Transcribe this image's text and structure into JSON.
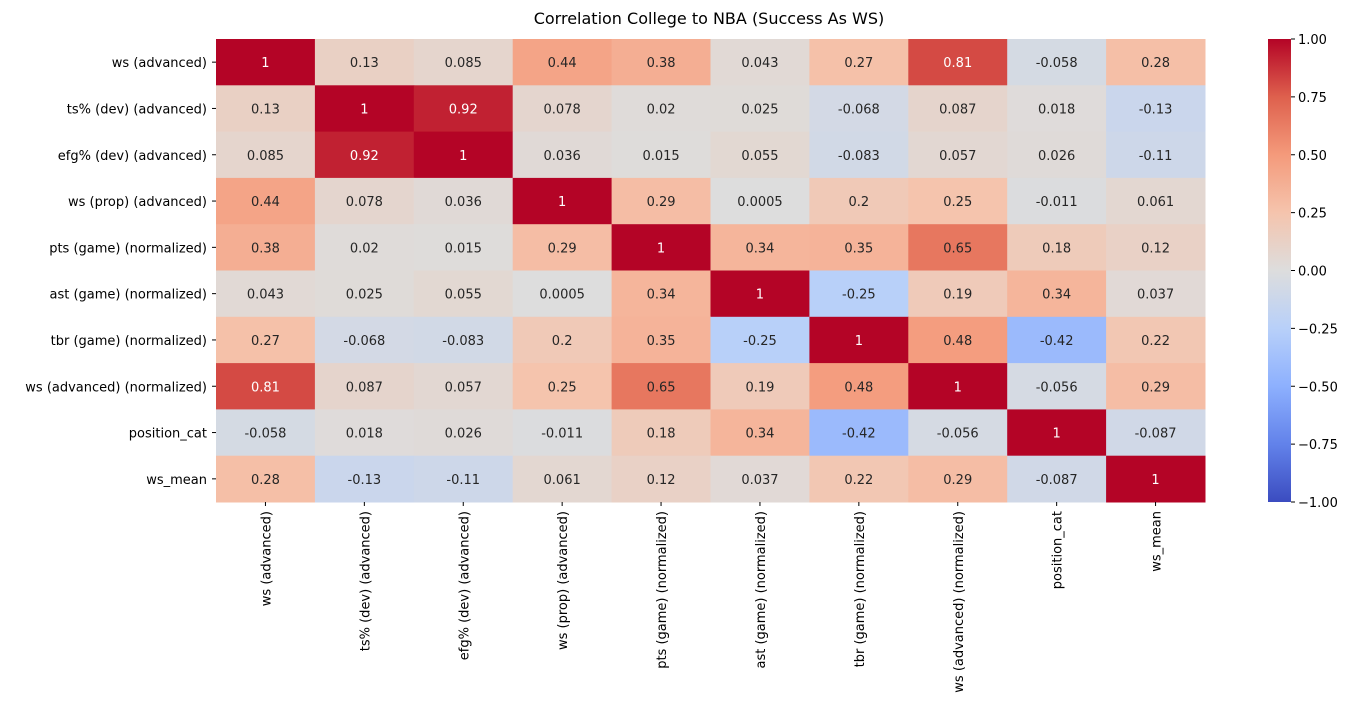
{
  "chart_data": {
    "type": "heatmap",
    "title": "Correlation College to NBA (Success As WS)",
    "xlabel": "",
    "ylabel": "",
    "row_labels": [
      "ws (advanced)",
      "ts% (dev) (advanced)",
      "efg% (dev) (advanced)",
      "ws (prop) (advanced)",
      "pts (game) (normalized)",
      "ast (game) (normalized)",
      "tbr (game) (normalized)",
      "ws (advanced) (normalized)",
      "position_cat",
      "ws_mean"
    ],
    "col_labels": [
      "ws (advanced)",
      "ts% (dev) (advanced)",
      "efg% (dev) (advanced)",
      "ws (prop) (advanced)",
      "pts (game) (normalized)",
      "ast (game) (normalized)",
      "tbr (game) (normalized)",
      "ws (advanced) (normalized)",
      "position_cat",
      "ws_mean"
    ],
    "values": [
      [
        1,
        0.13,
        0.085,
        0.44,
        0.38,
        0.043,
        0.27,
        0.81,
        -0.058,
        0.28
      ],
      [
        0.13,
        1,
        0.92,
        0.078,
        0.02,
        0.025,
        -0.068,
        0.087,
        0.018,
        -0.13
      ],
      [
        0.085,
        0.92,
        1,
        0.036,
        0.015,
        0.055,
        -0.083,
        0.057,
        0.026,
        -0.11
      ],
      [
        0.44,
        0.078,
        0.036,
        1,
        0.29,
        0.0005,
        0.2,
        0.25,
        -0.011,
        0.061
      ],
      [
        0.38,
        0.02,
        0.015,
        0.29,
        1,
        0.34,
        0.35,
        0.65,
        0.18,
        0.12
      ],
      [
        0.043,
        0.025,
        0.055,
        0.0005,
        0.34,
        1,
        -0.25,
        0.19,
        0.34,
        0.037
      ],
      [
        0.27,
        -0.068,
        -0.083,
        0.2,
        0.35,
        -0.25,
        1,
        0.48,
        -0.42,
        0.22
      ],
      [
        0.81,
        0.087,
        0.057,
        0.25,
        0.65,
        0.19,
        0.48,
        1,
        -0.056,
        0.29
      ],
      [
        -0.058,
        0.018,
        0.026,
        -0.011,
        0.18,
        0.34,
        -0.42,
        -0.056,
        1,
        -0.087
      ],
      [
        0.28,
        -0.13,
        -0.11,
        0.061,
        0.12,
        0.037,
        0.22,
        0.29,
        -0.087,
        1
      ]
    ],
    "cell_text": [
      [
        "1",
        "0.13",
        "0.085",
        "0.44",
        "0.38",
        "0.043",
        "0.27",
        "0.81",
        "-0.058",
        "0.28"
      ],
      [
        "0.13",
        "1",
        "0.92",
        "0.078",
        "0.02",
        "0.025",
        "-0.068",
        "0.087",
        "0.018",
        "-0.13"
      ],
      [
        "0.085",
        "0.92",
        "1",
        "0.036",
        "0.015",
        "0.055",
        "-0.083",
        "0.057",
        "0.026",
        "-0.11"
      ],
      [
        "0.44",
        "0.078",
        "0.036",
        "1",
        "0.29",
        "0.0005",
        "0.2",
        "0.25",
        "-0.011",
        "0.061"
      ],
      [
        "0.38",
        "0.02",
        "0.015",
        "0.29",
        "1",
        "0.34",
        "0.35",
        "0.65",
        "0.18",
        "0.12"
      ],
      [
        "0.043",
        "0.025",
        "0.055",
        "0.0005",
        "0.34",
        "1",
        "-0.25",
        "0.19",
        "0.34",
        "0.037"
      ],
      [
        "0.27",
        "-0.068",
        "-0.083",
        "0.2",
        "0.35",
        "-0.25",
        "1",
        "0.48",
        "-0.42",
        "0.22"
      ],
      [
        "0.81",
        "0.087",
        "0.057",
        "0.25",
        "0.65",
        "0.19",
        "0.48",
        "1",
        "-0.056",
        "0.29"
      ],
      [
        "-0.058",
        "0.018",
        "0.026",
        "-0.011",
        "0.18",
        "0.34",
        "-0.42",
        "-0.056",
        "1",
        "-0.087"
      ],
      [
        "0.28",
        "-0.13",
        "-0.11",
        "0.061",
        "0.12",
        "0.037",
        "0.22",
        "0.29",
        "-0.087",
        "1"
      ]
    ],
    "colormap": "coolwarm",
    "vmin": -1,
    "vmax": 1,
    "colorbar": {
      "ticks": [
        -1,
        -0.75,
        -0.5,
        -0.25,
        0,
        0.25,
        0.5,
        0.75,
        1
      ],
      "tick_labels": [
        "−1.00",
        "−0.75",
        "−0.50",
        "−0.25",
        "0.00",
        "0.25",
        "0.50",
        "0.75",
        "1.00"
      ]
    },
    "grid": false
  }
}
